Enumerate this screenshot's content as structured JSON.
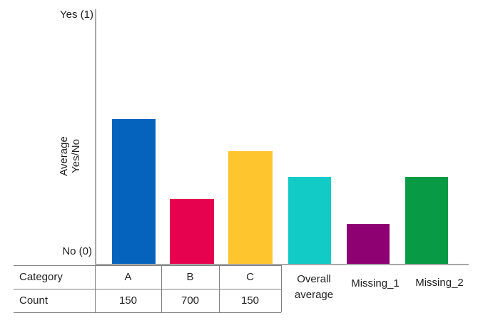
{
  "chart_data": {
    "type": "bar",
    "title": "",
    "ylabel_lines": [
      "Average",
      "Yes/No"
    ],
    "y_axis": {
      "top_tick_label": "Yes (1)",
      "bottom_tick_label": "No (0)",
      "min": 0,
      "max": 1,
      "axis_color": "#a8a8a8"
    },
    "categories": [
      "A",
      "B",
      "C",
      "Overall average",
      "Missing_1",
      "Missing_2"
    ],
    "values": [
      0.58,
      0.26,
      0.45,
      0.35,
      0.16,
      0.35
    ],
    "bar_colors": [
      "#0563be",
      "#e6024e",
      "#fec52e",
      "#12cbc6",
      "#8d0172",
      "#089a45"
    ],
    "x_labels": {
      "overall_average_lines": [
        "Overall",
        "average"
      ],
      "missing_1": "Missing_1",
      "missing_2": "Missing_2"
    },
    "grid": false,
    "legend": null,
    "text_color": "#1f1f1f",
    "background": "#ffffff",
    "counts_table": {
      "border_color": "#7f7f7f",
      "row_headers": [
        "Category",
        "Count"
      ],
      "columns": [
        "A",
        "B",
        "C"
      ],
      "counts": [
        "150",
        "700",
        "150"
      ]
    }
  }
}
